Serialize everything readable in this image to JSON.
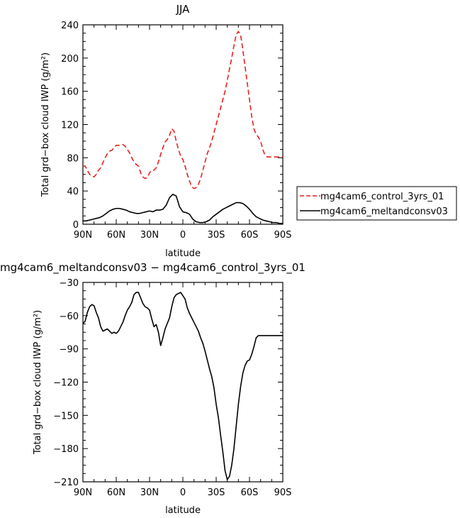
{
  "chart_data": [
    {
      "type": "line",
      "title": "JJA",
      "xlabel": "latitude",
      "ylabel": "Total grd−box cloud IWP (g/m²)",
      "xlim": [
        90,
        -90
      ],
      "ylim": [
        0,
        240
      ],
      "xticks": [
        90,
        60,
        30,
        0,
        -30,
        -60,
        -90
      ],
      "xtick_labels": [
        "90N",
        "60N",
        "30N",
        "0",
        "30S",
        "60S",
        "90S"
      ],
      "yticks": [
        0,
        40,
        80,
        120,
        160,
        200,
        240
      ],
      "ytick_labels": [
        "0",
        "40",
        "80",
        "120",
        "160",
        "200",
        "240"
      ],
      "grid": false,
      "legend_position": "right",
      "series": [
        {
          "name": "mg4cam6_control_3yrs_01",
          "color": "#e8201e",
          "dash": "dashed",
          "x": [
            90,
            88,
            86,
            84,
            82,
            80,
            78,
            76,
            74,
            72,
            70,
            68,
            66,
            64,
            62,
            60,
            58,
            56,
            54,
            52,
            50,
            48,
            46,
            44,
            42,
            40,
            38,
            36,
            34,
            32,
            30,
            28,
            26,
            24,
            22,
            20,
            18,
            16,
            14,
            12,
            10,
            8,
            6,
            4,
            2,
            0,
            -2,
            -4,
            -6,
            -8,
            -10,
            -12,
            -14,
            -16,
            -18,
            -20,
            -22,
            -24,
            -26,
            -28,
            -30,
            -32,
            -34,
            -36,
            -38,
            -40,
            -42,
            -44,
            -46,
            -48,
            -50,
            -52,
            -54,
            -56,
            -58,
            -60,
            -62,
            -64,
            -66,
            -68,
            -70,
            -72,
            -74,
            -76,
            -78,
            -80,
            -82,
            -84,
            -86,
            -88,
            -90
          ],
          "y": [
            70,
            70,
            65,
            60,
            58,
            57,
            60,
            65,
            68,
            74,
            80,
            85,
            88,
            89,
            92,
            95,
            95,
            95,
            96,
            94,
            90,
            86,
            80,
            75,
            72,
            70,
            62,
            57,
            55,
            56,
            62,
            65,
            65,
            68,
            75,
            84,
            92,
            99,
            102,
            107,
            115,
            112,
            100,
            90,
            82,
            78,
            70,
            60,
            52,
            45,
            43,
            44,
            48,
            55,
            65,
            75,
            85,
            92,
            100,
            110,
            120,
            130,
            140,
            150,
            160,
            173,
            187,
            200,
            215,
            228,
            232,
            228,
            210,
            190,
            170,
            150,
            130,
            115,
            108,
            105,
            100,
            90,
            83,
            81,
            81,
            81,
            81,
            81,
            81,
            81,
            81
          ]
        },
        {
          "name": "mg4cam6_meltandconsv03",
          "color": "#000000",
          "dash": "solid",
          "x": [
            90,
            87,
            84,
            81,
            78,
            75,
            72,
            69,
            66,
            63,
            60,
            57,
            54,
            51,
            48,
            45,
            42,
            39,
            36,
            33,
            30,
            27,
            24,
            21,
            18,
            15,
            12,
            9,
            6,
            3,
            0,
            -3,
            -6,
            -9,
            -12,
            -15,
            -18,
            -21,
            -24,
            -27,
            -30,
            -33,
            -36,
            -39,
            -42,
            -45,
            -48,
            -51,
            -54,
            -57,
            -60,
            -63,
            -66,
            -69,
            -72,
            -75,
            -78,
            -81,
            -84,
            -87,
            -90
          ],
          "y": [
            4,
            4,
            5,
            6,
            7,
            8,
            10,
            13,
            16,
            18,
            19,
            19,
            18,
            17,
            15,
            14,
            13,
            13,
            14,
            15,
            16,
            15,
            17,
            17,
            18,
            23,
            32,
            36,
            34,
            21,
            15,
            14,
            12,
            6,
            3,
            2,
            2,
            3,
            5,
            9,
            12,
            15,
            18,
            20,
            22,
            24,
            26,
            26,
            25,
            22,
            18,
            13,
            9,
            7,
            5,
            4,
            3,
            2,
            2,
            1,
            1
          ]
        }
      ]
    },
    {
      "type": "line",
      "title": "mg4cam6_meltandconsv03 − mg4cam6_control_3yrs_01",
      "xlabel": "latitude",
      "ylabel": "Total grd−box cloud IWP (g/m²)",
      "xlim": [
        90,
        -90
      ],
      "ylim": [
        -210,
        -30
      ],
      "xticks": [
        90,
        60,
        30,
        0,
        -30,
        -60,
        -90
      ],
      "xtick_labels": [
        "90N",
        "60N",
        "30N",
        "0",
        "30S",
        "60S",
        "90S"
      ],
      "yticks": [
        -210,
        -180,
        -150,
        -120,
        -90,
        -60,
        -30
      ],
      "ytick_labels": [
        "−210",
        "−180",
        "−150",
        "−120",
        "−90",
        "−60",
        "−30"
      ],
      "grid": false,
      "series": [
        {
          "color": "#000000",
          "dash": "solid",
          "x": [
            90,
            88,
            86,
            84,
            82,
            80,
            78,
            76,
            74,
            72,
            70,
            68,
            66,
            64,
            62,
            60,
            58,
            56,
            54,
            52,
            50,
            48,
            46,
            44,
            42,
            40,
            38,
            36,
            34,
            32,
            30,
            28,
            26,
            24,
            22,
            20,
            18,
            16,
            14,
            12,
            10,
            8,
            6,
            4,
            2,
            0,
            -2,
            -4,
            -6,
            -8,
            -10,
            -12,
            -14,
            -16,
            -18,
            -20,
            -22,
            -24,
            -26,
            -28,
            -30,
            -32,
            -34,
            -36,
            -38,
            -40,
            -42,
            -44,
            -46,
            -48,
            -50,
            -52,
            -54,
            -56,
            -58,
            -60,
            -62,
            -64,
            -66,
            -68,
            -70,
            -72,
            -74,
            -76,
            -78,
            -80,
            -82,
            -84,
            -86,
            -88,
            -90
          ],
          "y": [
            -67,
            -65,
            -57,
            -52,
            -50,
            -51,
            -57,
            -62,
            -70,
            -74,
            -73,
            -72,
            -74,
            -76,
            -75,
            -76,
            -74,
            -70,
            -66,
            -60,
            -55,
            -52,
            -48,
            -41,
            -39,
            -39,
            -44,
            -49,
            -52,
            -53,
            -55,
            -63,
            -70,
            -68,
            -75,
            -87,
            -80,
            -72,
            -67,
            -62,
            -52,
            -44,
            -41,
            -40,
            -39,
            -42,
            -45,
            -53,
            -58,
            -62,
            -66,
            -70,
            -74,
            -80,
            -85,
            -92,
            -100,
            -108,
            -115,
            -125,
            -140,
            -152,
            -168,
            -183,
            -200,
            -208,
            -205,
            -195,
            -180,
            -160,
            -140,
            -124,
            -112,
            -105,
            -101,
            -100,
            -95,
            -88,
            -80,
            -78,
            -78,
            -78,
            -78,
            -78,
            -78,
            -78,
            -78,
            -78,
            -78,
            -78,
            -78
          ]
        }
      ]
    }
  ]
}
